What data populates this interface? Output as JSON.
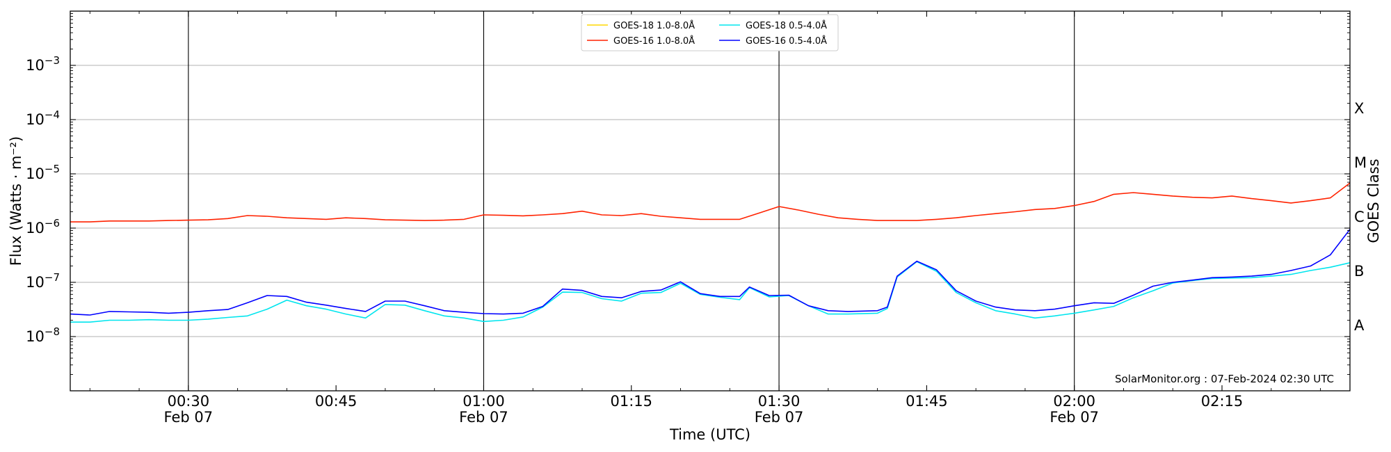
{
  "chart_data": {
    "type": "line",
    "xlabel": "Time (UTC)",
    "ylabel": "Flux (Watts · m⁻²)",
    "y2label": "GOES Class",
    "yscale": "log",
    "ylim": [
      1e-09,
      0.01
    ],
    "xlim": [
      "00:18",
      "02:28"
    ],
    "date": "Feb 07",
    "grid": "horizontal at decades",
    "legend_position": "top-center",
    "x_ticks": [
      {
        "time": "00:30",
        "label": "00:30",
        "sub": "Feb 07"
      },
      {
        "time": "00:45",
        "label": "00:45",
        "sub": ""
      },
      {
        "time": "01:00",
        "label": "01:00",
        "sub": "Feb 07"
      },
      {
        "time": "01:15",
        "label": "01:15",
        "sub": ""
      },
      {
        "time": "01:30",
        "label": "01:30",
        "sub": "Feb 07"
      },
      {
        "time": "01:45",
        "label": "01:45",
        "sub": ""
      },
      {
        "time": "02:00",
        "label": "02:00",
        "sub": "Feb 07"
      },
      {
        "time": "02:15",
        "label": "02:15",
        "sub": ""
      }
    ],
    "vlines": [
      "00:30",
      "01:00",
      "01:30",
      "02:00"
    ],
    "y_ticks": [
      {
        "value": 1e-08,
        "label": "10−8"
      },
      {
        "value": 1e-07,
        "label": "10−7"
      },
      {
        "value": 1e-06,
        "label": "10−6"
      },
      {
        "value": 1e-05,
        "label": "10−5"
      },
      {
        "value": 0.0001,
        "label": "10−4"
      },
      {
        "value": 0.001,
        "label": "10−3"
      }
    ],
    "class_labels": [
      {
        "label": "A",
        "value": 1.6e-08
      },
      {
        "label": "B",
        "value": 1.6e-07
      },
      {
        "label": "C",
        "value": 1.6e-06
      },
      {
        "label": "M",
        "value": 1.6e-05
      },
      {
        "label": "X",
        "value": 0.00016
      }
    ],
    "credit": "SolarMonitor.org : 07-Feb-2024 02:30 UTC",
    "series": [
      {
        "name": "GOES-18 1.0-8.0Å",
        "color": "#ffd700",
        "drawn": false,
        "points": []
      },
      {
        "name": "GOES-18 0.5-4.0Å",
        "color": "#00e5ee",
        "points": [
          [
            "00:18",
            1.85e-08
          ],
          [
            "00:20",
            1.85e-08
          ],
          [
            "00:22",
            2e-08
          ],
          [
            "00:24",
            2e-08
          ],
          [
            "00:26",
            2.05e-08
          ],
          [
            "00:28",
            2e-08
          ],
          [
            "00:30",
            2e-08
          ],
          [
            "00:32",
            2.1e-08
          ],
          [
            "00:34",
            2.25e-08
          ],
          [
            "00:36",
            2.4e-08
          ],
          [
            "00:38",
            3.2e-08
          ],
          [
            "00:40",
            4.7e-08
          ],
          [
            "00:42",
            3.7e-08
          ],
          [
            "00:44",
            3.2e-08
          ],
          [
            "00:46",
            2.6e-08
          ],
          [
            "00:48",
            2.2e-08
          ],
          [
            "00:50",
            3.9e-08
          ],
          [
            "00:52",
            3.8e-08
          ],
          [
            "00:54",
            3e-08
          ],
          [
            "00:56",
            2.4e-08
          ],
          [
            "00:58",
            2.2e-08
          ],
          [
            "01:00",
            1.9e-08
          ],
          [
            "01:02",
            2e-08
          ],
          [
            "01:04",
            2.3e-08
          ],
          [
            "01:06",
            3.5e-08
          ],
          [
            "01:08",
            6.6e-08
          ],
          [
            "01:10",
            6.5e-08
          ],
          [
            "01:12",
            5e-08
          ],
          [
            "01:14",
            4.5e-08
          ],
          [
            "01:16",
            6.3e-08
          ],
          [
            "01:18",
            6.5e-08
          ],
          [
            "01:20",
            9.6e-08
          ],
          [
            "01:22",
            6e-08
          ],
          [
            "01:24",
            5.3e-08
          ],
          [
            "01:26",
            4.8e-08
          ],
          [
            "01:27",
            8e-08
          ],
          [
            "01:29",
            5.4e-08
          ],
          [
            "01:31",
            5.7e-08
          ],
          [
            "01:33",
            3.7e-08
          ],
          [
            "01:35",
            2.6e-08
          ],
          [
            "01:37",
            2.6e-08
          ],
          [
            "01:40",
            2.7e-08
          ],
          [
            "01:41",
            3.3e-08
          ],
          [
            "01:42",
            1.25e-07
          ],
          [
            "01:44",
            2.4e-07
          ],
          [
            "01:46",
            1.6e-07
          ],
          [
            "01:48",
            6.5e-08
          ],
          [
            "01:50",
            4.2e-08
          ],
          [
            "01:52",
            3e-08
          ],
          [
            "01:54",
            2.6e-08
          ],
          [
            "01:56",
            2.2e-08
          ],
          [
            "01:58",
            2.4e-08
          ],
          [
            "02:00",
            2.7e-08
          ],
          [
            "02:02",
            3.1e-08
          ],
          [
            "02:04",
            3.6e-08
          ],
          [
            "02:06",
            5.2e-08
          ],
          [
            "02:08",
            7e-08
          ],
          [
            "02:10",
            9.7e-08
          ],
          [
            "02:12",
            1.08e-07
          ],
          [
            "02:14",
            1.18e-07
          ],
          [
            "02:16",
            1.2e-07
          ],
          [
            "02:18",
            1.22e-07
          ],
          [
            "02:20",
            1.3e-07
          ],
          [
            "02:22",
            1.4e-07
          ],
          [
            "02:24",
            1.65e-07
          ],
          [
            "02:26",
            1.9e-07
          ],
          [
            "02:28",
            2.3e-07
          ]
        ]
      },
      {
        "name": "GOES-16 1.0-8.0Å",
        "color": "#ff2200",
        "points": [
          [
            "00:18",
            1.3e-06
          ],
          [
            "00:20",
            1.3e-06
          ],
          [
            "00:22",
            1.35e-06
          ],
          [
            "00:24",
            1.35e-06
          ],
          [
            "00:26",
            1.35e-06
          ],
          [
            "00:28",
            1.38e-06
          ],
          [
            "00:30",
            1.4e-06
          ],
          [
            "00:32",
            1.42e-06
          ],
          [
            "00:34",
            1.5e-06
          ],
          [
            "00:36",
            1.7e-06
          ],
          [
            "00:38",
            1.65e-06
          ],
          [
            "00:40",
            1.55e-06
          ],
          [
            "00:42",
            1.5e-06
          ],
          [
            "00:44",
            1.45e-06
          ],
          [
            "00:46",
            1.55e-06
          ],
          [
            "00:48",
            1.5e-06
          ],
          [
            "00:50",
            1.42e-06
          ],
          [
            "00:52",
            1.4e-06
          ],
          [
            "00:54",
            1.38e-06
          ],
          [
            "00:56",
            1.4e-06
          ],
          [
            "00:58",
            1.45e-06
          ],
          [
            "01:00",
            1.75e-06
          ],
          [
            "01:02",
            1.72e-06
          ],
          [
            "01:04",
            1.68e-06
          ],
          [
            "01:06",
            1.75e-06
          ],
          [
            "01:08",
            1.85e-06
          ],
          [
            "01:10",
            2.05e-06
          ],
          [
            "01:12",
            1.75e-06
          ],
          [
            "01:14",
            1.7e-06
          ],
          [
            "01:16",
            1.85e-06
          ],
          [
            "01:18",
            1.65e-06
          ],
          [
            "01:20",
            1.55e-06
          ],
          [
            "01:22",
            1.45e-06
          ],
          [
            "01:24",
            1.45e-06
          ],
          [
            "01:26",
            1.45e-06
          ],
          [
            "01:28",
            1.9e-06
          ],
          [
            "01:30",
            2.5e-06
          ],
          [
            "01:32",
            2.15e-06
          ],
          [
            "01:34",
            1.8e-06
          ],
          [
            "01:36",
            1.55e-06
          ],
          [
            "01:38",
            1.45e-06
          ],
          [
            "01:40",
            1.38e-06
          ],
          [
            "01:42",
            1.38e-06
          ],
          [
            "01:44",
            1.38e-06
          ],
          [
            "01:46",
            1.45e-06
          ],
          [
            "01:48",
            1.55e-06
          ],
          [
            "01:50",
            1.7e-06
          ],
          [
            "01:52",
            1.85e-06
          ],
          [
            "01:54",
            2e-06
          ],
          [
            "01:56",
            2.2e-06
          ],
          [
            "01:58",
            2.3e-06
          ],
          [
            "02:00",
            2.6e-06
          ],
          [
            "02:02",
            3.1e-06
          ],
          [
            "02:04",
            4.2e-06
          ],
          [
            "02:06",
            4.5e-06
          ],
          [
            "02:08",
            4.2e-06
          ],
          [
            "02:10",
            3.9e-06
          ],
          [
            "02:12",
            3.7e-06
          ],
          [
            "02:14",
            3.6e-06
          ],
          [
            "02:16",
            3.9e-06
          ],
          [
            "02:18",
            3.5e-06
          ],
          [
            "02:20",
            3.2e-06
          ],
          [
            "02:22",
            2.9e-06
          ],
          [
            "02:24",
            3.2e-06
          ],
          [
            "02:26",
            3.6e-06
          ],
          [
            "02:28",
            6.8e-06
          ]
        ]
      },
      {
        "name": "GOES-16 0.5-4.0Å",
        "color": "#0000ff",
        "points": [
          [
            "00:18",
            2.6e-08
          ],
          [
            "00:20",
            2.5e-08
          ],
          [
            "00:22",
            2.9e-08
          ],
          [
            "00:24",
            2.85e-08
          ],
          [
            "00:26",
            2.8e-08
          ],
          [
            "00:28",
            2.7e-08
          ],
          [
            "00:30",
            2.8e-08
          ],
          [
            "00:32",
            3e-08
          ],
          [
            "00:34",
            3.15e-08
          ],
          [
            "00:36",
            4.2e-08
          ],
          [
            "00:38",
            5.7e-08
          ],
          [
            "00:40",
            5.5e-08
          ],
          [
            "00:42",
            4.3e-08
          ],
          [
            "00:44",
            3.8e-08
          ],
          [
            "00:46",
            3.3e-08
          ],
          [
            "00:48",
            2.9e-08
          ],
          [
            "00:50",
            4.5e-08
          ],
          [
            "00:52",
            4.5e-08
          ],
          [
            "00:54",
            3.7e-08
          ],
          [
            "00:56",
            3e-08
          ],
          [
            "00:58",
            2.8e-08
          ],
          [
            "01:00",
            2.65e-08
          ],
          [
            "01:02",
            2.6e-08
          ],
          [
            "01:04",
            2.7e-08
          ],
          [
            "01:06",
            3.6e-08
          ],
          [
            "01:08",
            7.5e-08
          ],
          [
            "01:10",
            7.1e-08
          ],
          [
            "01:12",
            5.5e-08
          ],
          [
            "01:14",
            5.2e-08
          ],
          [
            "01:16",
            6.8e-08
          ],
          [
            "01:18",
            7.2e-08
          ],
          [
            "01:20",
            1.02e-07
          ],
          [
            "01:22",
            6.2e-08
          ],
          [
            "01:24",
            5.5e-08
          ],
          [
            "01:26",
            5.5e-08
          ],
          [
            "01:27",
            8.2e-08
          ],
          [
            "01:29",
            5.7e-08
          ],
          [
            "01:31",
            5.8e-08
          ],
          [
            "01:33",
            3.7e-08
          ],
          [
            "01:35",
            3e-08
          ],
          [
            "01:37",
            2.9e-08
          ],
          [
            "01:40",
            3e-08
          ],
          [
            "01:41",
            3.5e-08
          ],
          [
            "01:42",
            1.3e-07
          ],
          [
            "01:44",
            2.45e-07
          ],
          [
            "01:46",
            1.7e-07
          ],
          [
            "01:48",
            7e-08
          ],
          [
            "01:50",
            4.5e-08
          ],
          [
            "01:52",
            3.5e-08
          ],
          [
            "01:54",
            3.1e-08
          ],
          [
            "01:56",
            3e-08
          ],
          [
            "01:58",
            3.2e-08
          ],
          [
            "02:00",
            3.7e-08
          ],
          [
            "02:02",
            4.2e-08
          ],
          [
            "02:04",
            4.1e-08
          ],
          [
            "02:06",
            5.8e-08
          ],
          [
            "02:08",
            8.5e-08
          ],
          [
            "02:10",
            1e-07
          ],
          [
            "02:12",
            1.1e-07
          ],
          [
            "02:14",
            1.22e-07
          ],
          [
            "02:16",
            1.25e-07
          ],
          [
            "02:18",
            1.3e-07
          ],
          [
            "02:20",
            1.4e-07
          ],
          [
            "02:22",
            1.65e-07
          ],
          [
            "02:24",
            2e-07
          ],
          [
            "02:26",
            3.2e-07
          ],
          [
            "02:28",
            9.5e-07
          ]
        ]
      }
    ]
  }
}
